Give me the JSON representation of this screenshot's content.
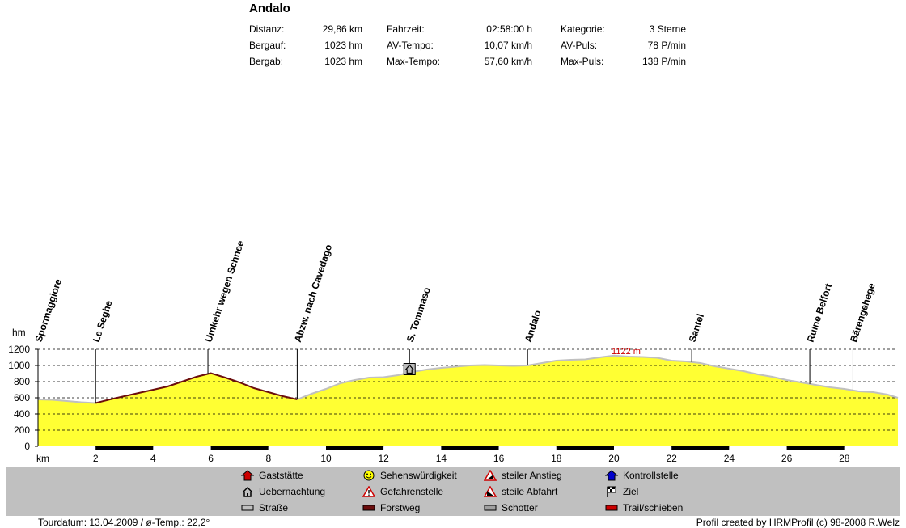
{
  "title": "Andalo",
  "stats": [
    [
      {
        "label": "Distanz:",
        "value": "29,86 km"
      },
      {
        "label": "Bergauf:",
        "value": "1023 hm"
      },
      {
        "label": "Bergab:",
        "value": "1023 hm"
      }
    ],
    [
      {
        "label": "Fahrzeit:",
        "value": "02:58:00 h"
      },
      {
        "label": "AV-Tempo:",
        "value": "10,07 km/h"
      },
      {
        "label": "Max-Tempo:",
        "value": "57,60 km/h"
      }
    ],
    [
      {
        "label": "Kategorie:",
        "value": "3 Sterne"
      },
      {
        "label": "AV-Puls:",
        "value": "78 P/min"
      },
      {
        "label": "Max-Puls:",
        "value": "138 P/min"
      }
    ]
  ],
  "chart_data": {
    "type": "area",
    "xlabel": "km",
    "ylabel": "hm",
    "xlim": [
      0,
      29.86
    ],
    "ylim": [
      0,
      1200
    ],
    "x_ticks": [
      2,
      4,
      6,
      8,
      10,
      12,
      14,
      16,
      18,
      20,
      22,
      24,
      26,
      28
    ],
    "y_ticks": [
      0,
      200,
      400,
      600,
      800,
      1000,
      1200
    ],
    "grid": "dashed horizontal",
    "max_label": "1122 m",
    "fill_color": "#ffff33",
    "segments": [
      {
        "surface": "Straße",
        "color": "#c0c0c0",
        "x": [
          0,
          0.5,
          1.0,
          1.5,
          2.0
        ],
        "y": [
          580,
          575,
          560,
          545,
          535
        ]
      },
      {
        "surface": "Forstweg",
        "color": "#6b0d0d",
        "x": [
          2.0,
          2.5,
          3.0,
          3.5,
          4.0,
          4.5,
          5.0,
          5.5,
          6.0,
          6.5,
          7.0,
          7.5,
          8.0,
          8.5,
          9.0
        ],
        "y": [
          535,
          580,
          620,
          660,
          700,
          740,
          800,
          860,
          905,
          850,
          790,
          720,
          670,
          620,
          580
        ]
      },
      {
        "surface": "Straße",
        "color": "#c0c0c0",
        "x": [
          9.0,
          9.5,
          10.0,
          10.5,
          11.0,
          11.5,
          12.0,
          12.5,
          13.0,
          13.5,
          14.0,
          14.5,
          15.0,
          15.5,
          16.0,
          16.5,
          17.0,
          17.5,
          18.0,
          18.5,
          19.0,
          19.5,
          20.0,
          20.5,
          21.0,
          21.5,
          22.0,
          22.5,
          23.0,
          23.5,
          24.0,
          24.5,
          25.0,
          25.5,
          26.0,
          26.5,
          27.0,
          27.5,
          28.0,
          28.5,
          29.0,
          29.5,
          29.86
        ],
        "y": [
          580,
          650,
          710,
          780,
          820,
          850,
          855,
          880,
          920,
          950,
          970,
          985,
          1000,
          1005,
          1000,
          995,
          1000,
          1030,
          1060,
          1070,
          1075,
          1100,
          1122,
          1110,
          1105,
          1095,
          1060,
          1050,
          1030,
          990,
          960,
          930,
          890,
          860,
          820,
          790,
          760,
          730,
          710,
          680,
          670,
          640,
          600
        ]
      }
    ],
    "waypoints": [
      {
        "name": "Spormaggiore",
        "km": 0.0
      },
      {
        "name": "Le Seghe",
        "km": 2.0
      },
      {
        "name": "Umkehr wegen Schnee",
        "km": 5.9
      },
      {
        "name": "Abzw. nach Cavedago",
        "km": 9.0
      },
      {
        "name": "S. Tommaso",
        "km": 12.9
      },
      {
        "name": "Andalo",
        "km": 17.0
      },
      {
        "name": "Santel",
        "km": 22.7
      },
      {
        "name": "Ruine Belfort",
        "km": 26.8
      },
      {
        "name": "Bärengehege",
        "km": 28.3
      }
    ],
    "marker": {
      "type": "Uebernachtung",
      "km": 12.9,
      "elev": 955
    }
  },
  "legend": [
    {
      "icon": "gaststaette-icon",
      "label": "Gaststätte",
      "color": "#cc0000"
    },
    {
      "icon": "uebernachtung-icon",
      "label": "Uebernachtung",
      "color": "#000000"
    },
    {
      "icon": "strasse-icon",
      "label": "Straße",
      "color": "#c0c0c0"
    },
    {
      "icon": "smiley-icon",
      "label": "Sehenswürdigkeit",
      "color": "#ffff00"
    },
    {
      "icon": "warning-icon",
      "label": "Gefahrenstelle",
      "color": "#cc0000"
    },
    {
      "icon": "forstweg-icon",
      "label": "Forstweg",
      "color": "#6b0d0d"
    },
    {
      "icon": "ascent-icon",
      "label": "steiler Anstieg",
      "color": "#cc0000"
    },
    {
      "icon": "descent-icon",
      "label": "steile Abfahrt",
      "color": "#cc0000"
    },
    {
      "icon": "schotter-icon",
      "label": "Schotter",
      "color": "#a0a0a0"
    },
    {
      "icon": "checkpoint-icon",
      "label": "Kontrollstelle",
      "color": "#0000cc"
    },
    {
      "icon": "finish-flag-icon",
      "label": "Ziel",
      "color": "#000000"
    },
    {
      "icon": "trail-icon",
      "label": "Trail/schieben",
      "color": "#cc0000"
    }
  ],
  "footer": {
    "tour": "Tourdatum: 13.04.2009  /  ø-Temp.: 22,2°",
    "credit": "Profil created by HRMProfil (c) 98-2008 R.Welz"
  }
}
